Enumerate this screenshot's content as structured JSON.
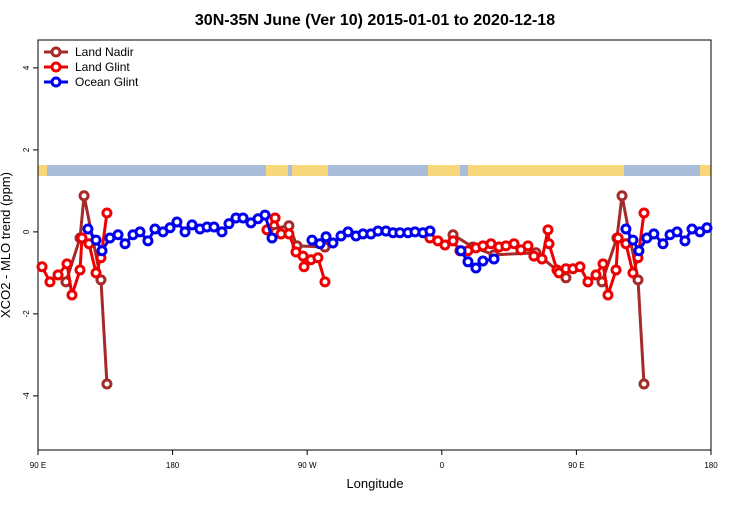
{
  "chart_data": {
    "type": "line",
    "title": "30N-35N June (Ver 10)   2015-01-01 to 2020-12-18",
    "x_label": "Longitude",
    "y_label": "XCO2 - MLO trend (ppm)",
    "xlim": [
      90,
      540
    ],
    "ylim": [
      -5.32,
      4.68
    ],
    "xticks": [
      {
        "value": 90,
        "label": "90 E"
      },
      180,
      {
        "value": 270,
        "label": "90 W"
      },
      {
        "value": 360,
        "label": "0"
      },
      {
        "value": 450,
        "label": "90 E"
      },
      {
        "value": 540,
        "label": "180"
      }
    ],
    "yticks": [
      -4,
      -2,
      0,
      2,
      4
    ],
    "legend": "top-left",
    "series": [
      {
        "name": "Land Nadir",
        "color": "#a52a2a",
        "x": [
          108.7,
          118.1,
          120.8,
          132.1,
          136.1,
          null,
          243.8,
          257.8,
          263.2,
          281.9,
          null,
          367.5,
          380.8,
          394.9,
          423.0,
          443.0,
          null,
          467.1,
          477.1,
          480.5,
          491.2,
          495.2
        ],
        "values": [
          -1.22,
          -0.15,
          0.88,
          -1.17,
          -3.71,
          null,
          0.05,
          0.15,
          -0.34,
          -0.37,
          null,
          -0.07,
          -0.37,
          -0.56,
          -0.51,
          -1.12,
          null,
          -1.22,
          -0.15,
          0.88,
          -1.17,
          -3.71
        ]
      },
      {
        "name": "Land Glint",
        "color": "#ee0000",
        "x": [
          92.7,
          98.0,
          103.4,
          109.4,
          112.7,
          118.1,
          119.4,
          124.1,
          128.8,
          132.1,
          136.1,
          null,
          243.1,
          248.5,
          252.5,
          257.8,
          262.5,
          267.2,
          267.9,
          272.5,
          277.2,
          281.9,
          null,
          352.1,
          357.4,
          362.1,
          367.5,
          372.1,
          377.5,
          382.8,
          387.5,
          392.9,
          398.2,
          402.9,
          408.3,
          412.9,
          417.6,
          421.6,
          427.0,
          431.0,
          431.7,
          437.0,
          438.3,
          443.0,
          447.7,
          452.4,
          457.7,
          463.1,
          467.8,
          471.1,
          476.5,
          477.9,
          483.1,
          487.8,
          491.2,
          495.2
        ],
        "values": [
          -0.85,
          -1.22,
          -1.05,
          -0.78,
          -1.54,
          -0.93,
          -0.15,
          -0.29,
          -1.0,
          -0.63,
          0.46,
          null,
          0.05,
          0.34,
          -0.05,
          -0.05,
          -0.49,
          -0.59,
          -0.85,
          -0.68,
          -0.63,
          -1.22,
          null,
          -0.15,
          -0.22,
          -0.32,
          -0.22,
          -0.46,
          -0.46,
          -0.39,
          -0.34,
          -0.29,
          -0.37,
          -0.34,
          -0.29,
          -0.44,
          -0.34,
          -0.59,
          -0.66,
          0.05,
          -0.29,
          -0.93,
          -1.0,
          -0.9,
          -0.9,
          -0.85,
          -1.22,
          -1.05,
          -0.78,
          -1.54,
          -0.93,
          -0.15,
          -0.29,
          -1.0,
          -0.63,
          0.46
        ]
      },
      {
        "name": "Ocean Glint",
        "color": "#0000ee",
        "x": [
          123.4,
          128.8,
          132.8,
          138.1,
          143.5,
          148.2,
          153.5,
          158.2,
          163.5,
          168.2,
          173.6,
          178.3,
          182.9,
          188.3,
          193.0,
          198.3,
          203.0,
          207.7,
          213.0,
          217.7,
          222.4,
          227.1,
          232.4,
          237.1,
          241.8,
          246.5,
          null,
          273.2,
          278.5,
          282.6,
          287.2,
          292.6,
          297.3,
          302.6,
          307.3,
          312.6,
          317.3,
          322.7,
          327.4,
          332.0,
          337.4,
          342.1,
          347.4,
          352.1,
          null,
          372.8,
          377.5,
          382.8,
          387.5,
          394.9,
          null,
          483.1,
          487.8,
          491.8,
          497.1,
          501.8,
          507.9,
          512.6,
          517.3,
          522.6,
          527.3,
          532.6,
          537.3
        ],
        "values": [
          0.07,
          -0.2,
          -0.46,
          -0.15,
          -0.07,
          -0.29,
          -0.07,
          0.0,
          -0.22,
          0.07,
          0.0,
          0.1,
          0.24,
          0.0,
          0.17,
          0.07,
          0.12,
          0.12,
          0.0,
          0.2,
          0.34,
          0.34,
          0.22,
          0.32,
          0.41,
          -0.15,
          null,
          -0.2,
          -0.29,
          -0.12,
          -0.27,
          -0.1,
          0.0,
          -0.1,
          -0.05,
          -0.05,
          0.02,
          0.02,
          -0.02,
          -0.02,
          -0.02,
          0.0,
          -0.02,
          0.02,
          null,
          -0.46,
          -0.73,
          -0.88,
          -0.71,
          -0.66,
          null,
          0.07,
          -0.2,
          -0.46,
          -0.15,
          -0.05,
          -0.29,
          -0.07,
          0.0,
          -0.22,
          0.07,
          0.0,
          0.1
        ]
      }
    ]
  }
}
